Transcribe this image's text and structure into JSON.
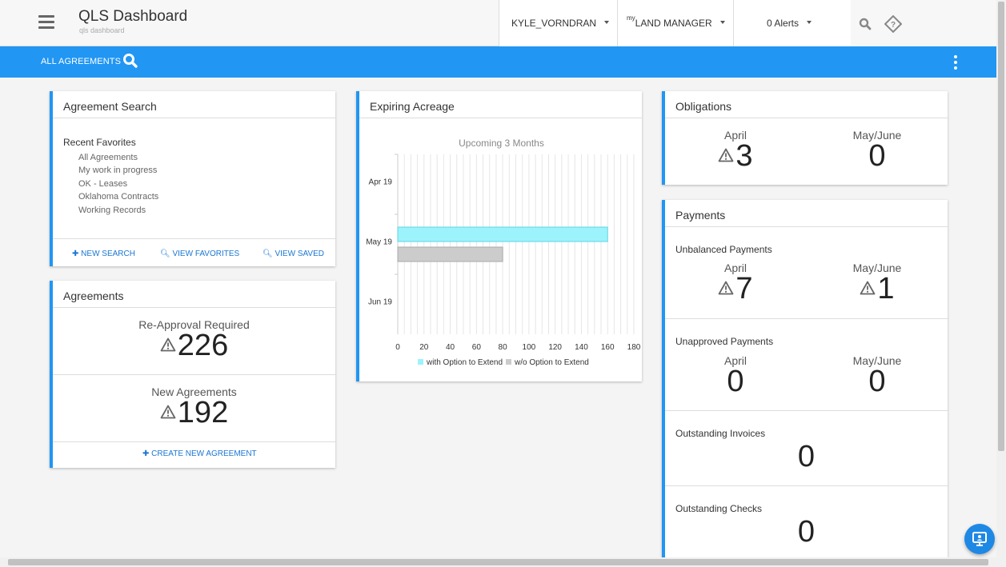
{
  "header": {
    "title": "QLS Dashboard",
    "subtitle": "qls dashboard",
    "user": "KYLE_VORNDRAN",
    "app_prefix": "my",
    "app_name": "LAND MANAGER",
    "alerts": "0 Alerts"
  },
  "toolbar": {
    "label": "ALL AGREEMENTS"
  },
  "agreement_search": {
    "title": "Agreement Search",
    "recent_heading": "Recent Favorites",
    "favorites": [
      "All Agreements",
      "My work in progress",
      "OK - Leases",
      "Oklahoma Contracts",
      "Working Records"
    ],
    "actions": {
      "new_search": "NEW SEARCH",
      "view_favorites": "VIEW FAVORITES",
      "view_saved": "VIEW SAVED"
    }
  },
  "agreements": {
    "title": "Agreements",
    "reapproval_label": "Re-Approval Required",
    "reapproval_value": "226",
    "new_label": "New Agreements",
    "new_value": "192",
    "create_label": "CREATE NEW AGREEMENT"
  },
  "expiring_acreage": {
    "title": "Expiring Acreage"
  },
  "chart_data": {
    "type": "bar",
    "orientation": "horizontal",
    "title": "Upcoming 3 Months",
    "categories": [
      "Apr 19",
      "May 19",
      "Jun 19"
    ],
    "series": [
      {
        "name": "with Option to Extend",
        "color": "#9cf3fb",
        "values": [
          0,
          160,
          0
        ]
      },
      {
        "name": "w/o Option to Extend",
        "color": "#cccccc",
        "values": [
          0,
          80,
          0
        ]
      }
    ],
    "xlim": [
      0,
      180
    ],
    "xticks": [
      0,
      20,
      40,
      60,
      80,
      100,
      120,
      140,
      160,
      180
    ],
    "grid": true,
    "legend": "bottom"
  },
  "obligations": {
    "title": "Obligations",
    "april_label": "April",
    "april_value": "3",
    "mayjune_label": "May/June",
    "mayjune_value": "0"
  },
  "payments": {
    "title": "Payments",
    "unbalanced": {
      "heading": "Unbalanced Payments",
      "april_label": "April",
      "april_value": "7",
      "mayjune_label": "May/June",
      "mayjune_value": "1"
    },
    "unapproved": {
      "heading": "Unapproved Payments",
      "april_label": "April",
      "april_value": "0",
      "mayjune_label": "May/June",
      "mayjune_value": "0"
    },
    "invoices": {
      "heading": "Outstanding Invoices",
      "value": "0"
    },
    "checks": {
      "heading": "Outstanding Checks",
      "value": "0"
    }
  }
}
